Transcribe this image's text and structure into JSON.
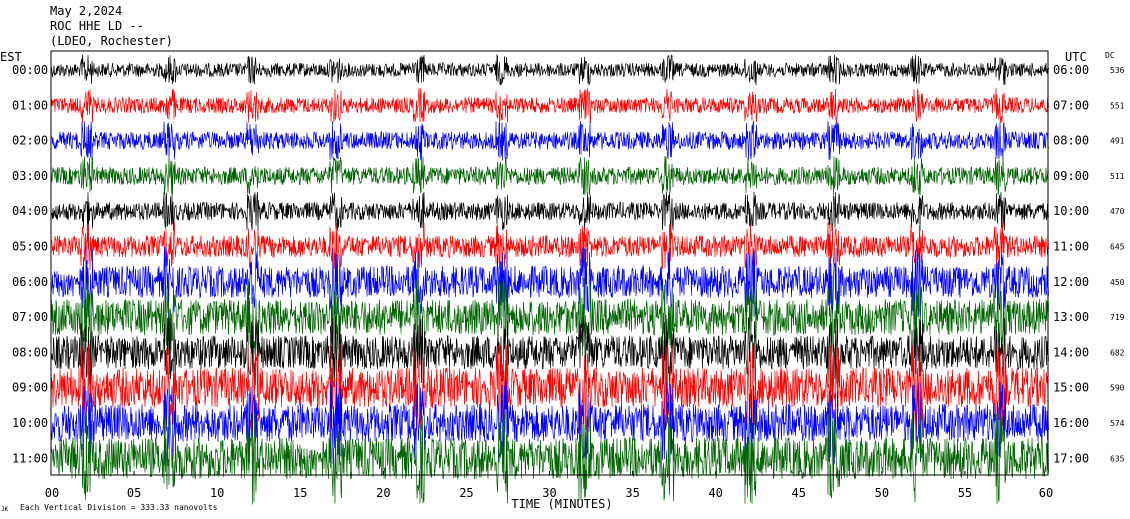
{
  "header": {
    "date": "May 2,2024",
    "station": "ROC HHE LD --",
    "network": "(LDEO, Rochester)"
  },
  "footer": {
    "scale_note": "Each Vertical Division = 333.33 nanovolts",
    "corner_mark": "JK"
  },
  "chart_data": {
    "type": "line",
    "title": "",
    "xlabel": "TIME (MINUTES)",
    "left_axis_label": "EST",
    "right_axis_label": "UTC",
    "dc_label": "DC",
    "xlim": [
      0,
      60
    ],
    "x_ticks": [
      0,
      5,
      10,
      15,
      20,
      25,
      30,
      35,
      40,
      45,
      50,
      55,
      60
    ],
    "x_tick_labels": [
      "00",
      "05",
      "10",
      "15",
      "20",
      "25",
      "30",
      "35",
      "40",
      "45",
      "50",
      "55",
      "60"
    ],
    "trace_colors": [
      "#000000",
      "#ff0000",
      "#0000ff",
      "#006400"
    ],
    "rows": [
      {
        "est": "00:00",
        "utc": "06:00",
        "dc": "536",
        "color": "#000000",
        "amplitude": 7
      },
      {
        "est": "01:00",
        "utc": "07:00",
        "dc": "551",
        "color": "#ff0000",
        "amplitude": 8
      },
      {
        "est": "02:00",
        "utc": "08:00",
        "dc": "491",
        "color": "#0000ff",
        "amplitude": 9
      },
      {
        "est": "03:00",
        "utc": "09:00",
        "dc": "511",
        "color": "#006400",
        "amplitude": 9
      },
      {
        "est": "04:00",
        "utc": "10:00",
        "dc": "470",
        "color": "#000000",
        "amplitude": 9
      },
      {
        "est": "05:00",
        "utc": "11:00",
        "dc": "645",
        "color": "#ff0000",
        "amplitude": 11
      },
      {
        "est": "06:00",
        "utc": "12:00",
        "dc": "450",
        "color": "#0000ff",
        "amplitude": 16
      },
      {
        "est": "07:00",
        "utc": "13:00",
        "dc": "719",
        "color": "#006400",
        "amplitude": 18
      },
      {
        "est": "08:00",
        "utc": "14:00",
        "dc": "682",
        "color": "#000000",
        "amplitude": 17
      },
      {
        "est": "09:00",
        "utc": "15:00",
        "dc": "590",
        "color": "#ff0000",
        "amplitude": 20
      },
      {
        "est": "10:00",
        "utc": "16:00",
        "dc": "574",
        "color": "#0000ff",
        "amplitude": 19
      },
      {
        "est": "11:00",
        "utc": "17:00",
        "dc": "635",
        "color": "#006400",
        "amplitude": 21
      }
    ],
    "grid": true
  }
}
